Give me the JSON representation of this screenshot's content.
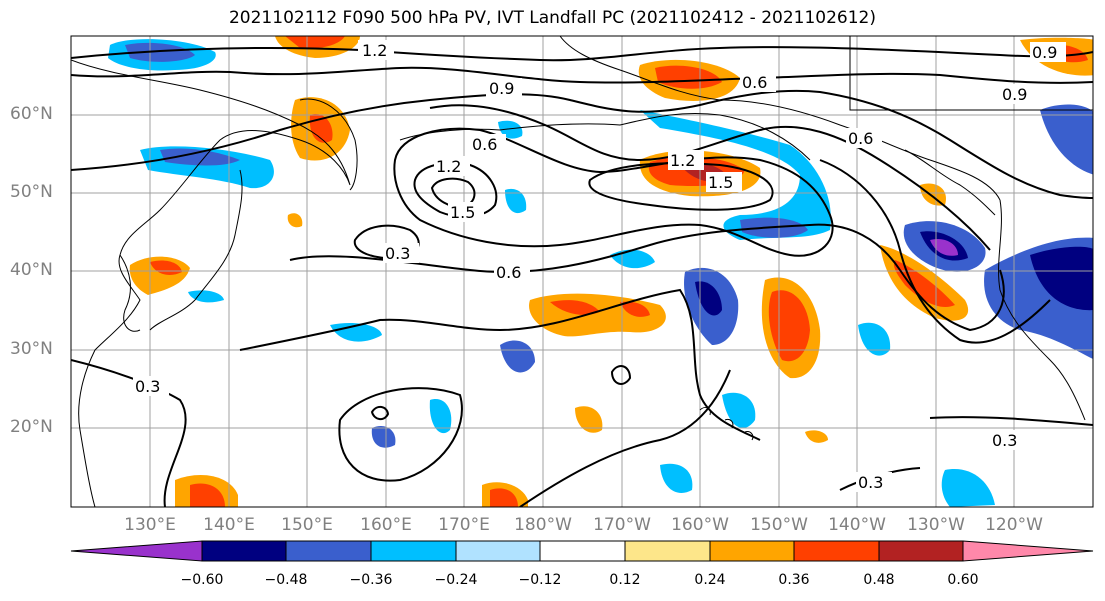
{
  "title": "2021102112 F090 500 hPa PV, IVT Landfall PC (2021102412 - 2021102612)",
  "map": {
    "lat_labels": [
      "60°N",
      "50°N",
      "40°N",
      "30°N",
      "20°N"
    ],
    "lon_labels": [
      "130°E",
      "140°E",
      "150°E",
      "160°E",
      "170°E",
      "180°W",
      "170°W",
      "160°W",
      "150°W",
      "140°W",
      "130°W",
      "120°W"
    ],
    "contour_labels": [
      "1.2",
      "0.9",
      "0.6",
      "0.9",
      "0.6",
      "1.2",
      "1.5",
      "0.3",
      "0.6",
      "1.2",
      "1.5",
      "0.6",
      "0.9",
      "0.3",
      "0.3",
      "0.3"
    ],
    "colors": {
      "land_outline": "#000000",
      "grid": "#a0a0a0"
    }
  },
  "colorbar": {
    "colors": [
      "#9932cc",
      "#000080",
      "#3a5fcd",
      "#00bfff",
      "#b0e2ff",
      "#ffffff",
      "#fde68a",
      "#ffa500",
      "#ff4000",
      "#b22222",
      "#ff88aa"
    ],
    "ticks": [
      "−0.60",
      "−0.48",
      "−0.36",
      "−0.24",
      "−0.12",
      "0.12",
      "0.24",
      "0.36",
      "0.48",
      "0.60"
    ]
  }
}
